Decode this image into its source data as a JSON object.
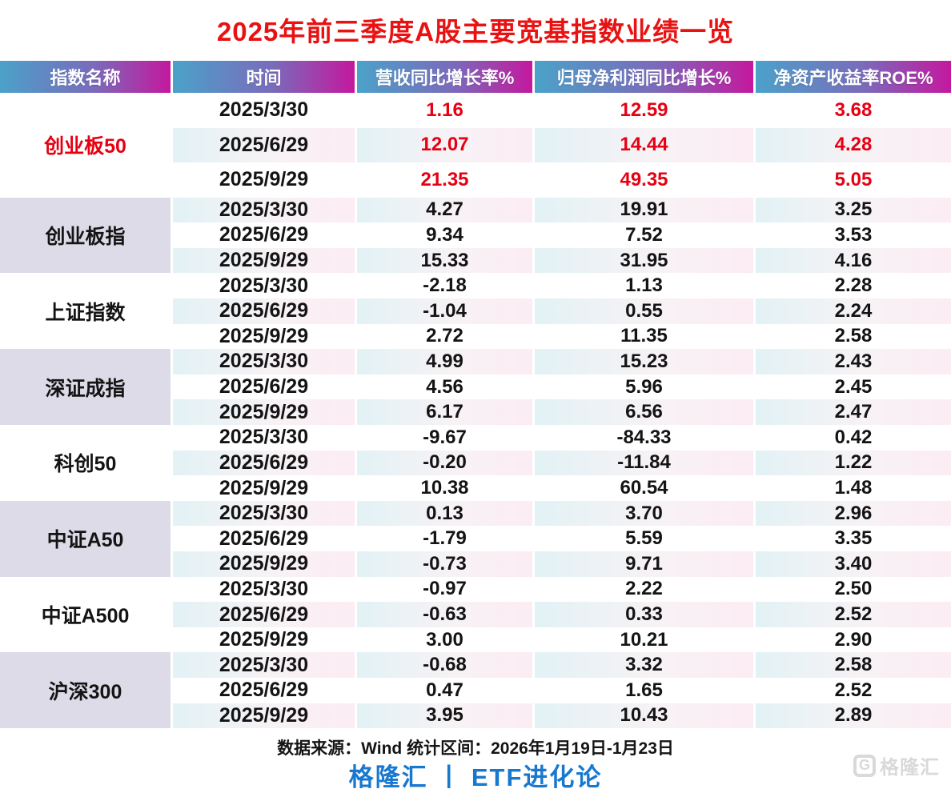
{
  "title": "2025年前三季度A股主要宽基指数业绩一览",
  "colors": {
    "title_red": "#e81212",
    "value_red": "#e60012",
    "header_gradient_left": "#4ba2c9",
    "header_gradient_right": "#c4189e",
    "group_cell_bg": "#dedbe8",
    "row_gradient_left": "#e2f2f5",
    "row_gradient_right": "#fcecf4",
    "brand_blue": "#1778cf",
    "watermark_gray": "#d9d9d9"
  },
  "chart_data": {
    "type": "table",
    "columns": [
      "指数名称",
      "时间",
      "营收同比增长率%",
      "归母净利润同比增长%",
      "净资产收益率ROE%"
    ],
    "groups": [
      {
        "index": "创业板50",
        "highlight": true,
        "rows": [
          [
            "2025/3/30",
            "1.16",
            "12.59",
            "3.68"
          ],
          [
            "2025/6/29",
            "12.07",
            "14.44",
            "4.28"
          ],
          [
            "2025/9/29",
            "21.35",
            "49.35",
            "5.05"
          ]
        ]
      },
      {
        "index": "创业板指",
        "highlight": false,
        "rows": [
          [
            "2025/3/30",
            "4.27",
            "19.91",
            "3.25"
          ],
          [
            "2025/6/29",
            "9.34",
            "7.52",
            "3.53"
          ],
          [
            "2025/9/29",
            "15.33",
            "31.95",
            "4.16"
          ]
        ]
      },
      {
        "index": "上证指数",
        "highlight": false,
        "rows": [
          [
            "2025/3/30",
            "-2.18",
            "1.13",
            "2.28"
          ],
          [
            "2025/6/29",
            "-1.04",
            "0.55",
            "2.24"
          ],
          [
            "2025/9/29",
            "2.72",
            "11.35",
            "2.58"
          ]
        ]
      },
      {
        "index": "深证成指",
        "highlight": false,
        "rows": [
          [
            "2025/3/30",
            "4.99",
            "15.23",
            "2.43"
          ],
          [
            "2025/6/29",
            "4.56",
            "5.96",
            "2.45"
          ],
          [
            "2025/9/29",
            "6.17",
            "6.56",
            "2.47"
          ]
        ]
      },
      {
        "index": "科创50",
        "highlight": false,
        "rows": [
          [
            "2025/3/30",
            "-9.67",
            "-84.33",
            "0.42"
          ],
          [
            "2025/6/29",
            "-0.20",
            "-11.84",
            "1.22"
          ],
          [
            "2025/9/29",
            "10.38",
            "60.54",
            "1.48"
          ]
        ]
      },
      {
        "index": "中证A50",
        "highlight": false,
        "rows": [
          [
            "2025/3/30",
            "0.13",
            "3.70",
            "2.96"
          ],
          [
            "2025/6/29",
            "-1.79",
            "5.59",
            "3.35"
          ],
          [
            "2025/9/29",
            "-0.73",
            "9.71",
            "3.40"
          ]
        ]
      },
      {
        "index": "中证A500",
        "highlight": false,
        "rows": [
          [
            "2025/3/30",
            "-0.97",
            "2.22",
            "2.50"
          ],
          [
            "2025/6/29",
            "-0.63",
            "0.33",
            "2.52"
          ],
          [
            "2025/9/29",
            "3.00",
            "10.21",
            "2.90"
          ]
        ]
      },
      {
        "index": "沪深300",
        "highlight": false,
        "rows": [
          [
            "2025/3/30",
            "-0.68",
            "3.32",
            "2.58"
          ],
          [
            "2025/6/29",
            "0.47",
            "1.65",
            "2.52"
          ],
          [
            "2025/9/29",
            "3.95",
            "10.43",
            "2.89"
          ]
        ]
      }
    ]
  },
  "footer": {
    "source_line": "数据来源：Wind 统计区间：2026年1月19日-1月23日",
    "brand_line": "格隆汇 丨 ETF进化论",
    "watermark_text": "格隆汇",
    "watermark_glyph": "G"
  }
}
